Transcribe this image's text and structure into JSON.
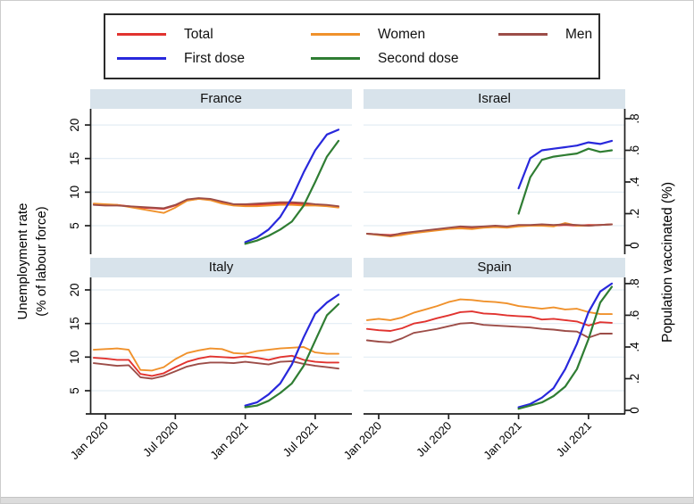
{
  "colors": {
    "grid": "#e3edf4",
    "axis": "#1f1f1f",
    "panel_header_bg": "#d8e3eb",
    "legend_border": "#2b2b2b",
    "background": "#ffffff"
  },
  "legend": {
    "items": [
      {
        "label": "Total",
        "color": "#e1332f"
      },
      {
        "label": "Women",
        "color": "#f0912b"
      },
      {
        "label": "Men",
        "color": "#9c4d48"
      },
      {
        "label": "First dose",
        "color": "#2828dc"
      },
      {
        "label": "Second dose",
        "color": "#2f7d33"
      }
    ]
  },
  "axis_labels": {
    "left_line1": "Unemployment rate",
    "left_line2": "(% of labour force)",
    "right": "Population vaccinated (%)"
  },
  "chart_data": {
    "type": "line",
    "layout": "2x2 small multiples; unemployment on left axis, vaccination share on right axis; legend top; light-blue panel title strips",
    "x": {
      "unit": "month",
      "labels": [
        "Dec 2019",
        "Jan 2020",
        "Feb 2020",
        "Mar 2020",
        "Apr 2020",
        "May 2020",
        "Jun 2020",
        "Jul 2020",
        "Aug 2020",
        "Sep 2020",
        "Oct 2020",
        "Nov 2020",
        "Dec 2020",
        "Jan 2021",
        "Feb 2021",
        "Mar 2021",
        "Apr 2021",
        "May 2021",
        "Jun 2021",
        "Jul 2021",
        "Aug 2021",
        "Sep 2021"
      ],
      "tick_labels": [
        "Jan 2020",
        "Jul 2020",
        "Jan 2021",
        "Jul 2021"
      ],
      "tick_indices": [
        1,
        7,
        13,
        19
      ]
    },
    "left_axis": {
      "label": "Unemployment rate (% of labour force)",
      "ticks": [
        5,
        10,
        15,
        20
      ],
      "tick_labels": [
        "5",
        "10",
        "15",
        "20"
      ],
      "range_hint": [
        0.75,
        22.4
      ]
    },
    "right_axis": {
      "label": "Population vaccinated (%)",
      "ticks": [
        0,
        0.2,
        0.4,
        0.6,
        0.8
      ],
      "tick_labels": [
        "0",
        ".2",
        ".4",
        ".6",
        ".8"
      ],
      "range_hint": [
        -0.06,
        0.86
      ]
    },
    "vaccination_start_index": 13,
    "panels": [
      {
        "title": "France",
        "series": [
          {
            "name": "Total",
            "axis": "left",
            "values": [
              8.2,
              8.1,
              8.1,
              7.9,
              7.7,
              7.6,
              7.5,
              8.0,
              8.8,
              9.0,
              8.9,
              8.4,
              8.1,
              8.0,
              8.1,
              8.2,
              8.3,
              8.3,
              8.2,
              8.1,
              8.0,
              7.8
            ]
          },
          {
            "name": "Women",
            "axis": "left",
            "values": [
              8.3,
              8.2,
              8.1,
              7.8,
              7.5,
              7.2,
              6.9,
              7.7,
              8.7,
              9.0,
              8.8,
              8.3,
              8.0,
              7.9,
              7.9,
              8.0,
              8.1,
              8.1,
              8.0,
              8.0,
              7.9,
              7.7
            ]
          },
          {
            "name": "Men",
            "axis": "left",
            "values": [
              8.1,
              8.0,
              8.0,
              7.9,
              7.8,
              7.7,
              7.6,
              8.1,
              8.9,
              9.1,
              9.0,
              8.6,
              8.2,
              8.2,
              8.3,
              8.4,
              8.5,
              8.5,
              8.4,
              8.2,
              8.1,
              7.9
            ]
          },
          {
            "name": "First dose",
            "axis": "right",
            "values": [
              0.02,
              0.05,
              0.1,
              0.18,
              0.3,
              0.46,
              0.6,
              0.7,
              0.73
            ]
          },
          {
            "name": "Second dose",
            "axis": "right",
            "values": [
              0.01,
              0.03,
              0.06,
              0.1,
              0.15,
              0.25,
              0.4,
              0.56,
              0.66
            ]
          }
        ]
      },
      {
        "title": "Israel",
        "series": [
          {
            "name": "Total",
            "axis": "left",
            "values": [
              3.8,
              3.7,
              3.6,
              3.8,
              4.0,
              4.2,
              4.4,
              4.6,
              4.8,
              4.7,
              4.8,
              4.9,
              4.8,
              5.0,
              5.0,
              5.1,
              5.0,
              5.1,
              5.0,
              5.1,
              5.1,
              5.2
            ]
          },
          {
            "name": "Women",
            "axis": "left",
            "values": [
              3.8,
              3.6,
              3.4,
              3.6,
              3.9,
              4.1,
              4.3,
              4.5,
              4.6,
              4.5,
              4.7,
              4.8,
              4.7,
              4.9,
              5.0,
              5.0,
              4.9,
              5.4,
              5.0,
              5.0,
              5.1,
              5.2
            ]
          },
          {
            "name": "Men",
            "axis": "left",
            "values": [
              3.8,
              3.7,
              3.5,
              3.9,
              4.1,
              4.3,
              4.5,
              4.7,
              4.9,
              4.8,
              4.9,
              5.0,
              4.9,
              5.1,
              5.1,
              5.2,
              5.1,
              5.2,
              5.1,
              5.0,
              5.1,
              5.2
            ]
          },
          {
            "name": "First dose",
            "axis": "right",
            "values": [
              0.36,
              0.55,
              0.6,
              0.61,
              0.62,
              0.63,
              0.65,
              0.64,
              0.66
            ]
          },
          {
            "name": "Second dose",
            "axis": "right",
            "values": [
              0.2,
              0.43,
              0.54,
              0.56,
              0.57,
              0.58,
              0.61,
              0.59,
              0.6
            ]
          }
        ]
      },
      {
        "title": "Italy",
        "series": [
          {
            "name": "Total",
            "axis": "left",
            "values": [
              9.9,
              9.8,
              9.6,
              9.6,
              7.5,
              7.2,
              7.6,
              8.5,
              9.3,
              9.8,
              10.1,
              10.0,
              9.9,
              10.1,
              9.9,
              9.6,
              10.0,
              10.2,
              9.6,
              9.3,
              9.2,
              9.2
            ]
          },
          {
            "name": "Women",
            "axis": "left",
            "values": [
              11.1,
              11.2,
              11.3,
              11.1,
              8.1,
              8.0,
              8.5,
              9.7,
              10.6,
              11.0,
              11.3,
              11.2,
              10.6,
              10.5,
              10.9,
              11.1,
              11.3,
              11.4,
              11.5,
              10.7,
              10.5,
              10.5
            ]
          },
          {
            "name": "Men",
            "axis": "left",
            "values": [
              9.1,
              8.9,
              8.7,
              8.8,
              7.0,
              6.8,
              7.2,
              7.9,
              8.6,
              9.0,
              9.2,
              9.2,
              9.1,
              9.3,
              9.1,
              8.9,
              9.3,
              9.4,
              9.0,
              8.7,
              8.5,
              8.3
            ]
          },
          {
            "name": "First dose",
            "axis": "right",
            "values": [
              0.03,
              0.05,
              0.1,
              0.17,
              0.29,
              0.46,
              0.61,
              0.68,
              0.73
            ]
          },
          {
            "name": "Second dose",
            "axis": "right",
            "values": [
              0.02,
              0.03,
              0.06,
              0.11,
              0.17,
              0.28,
              0.44,
              0.6,
              0.67
            ]
          }
        ]
      },
      {
        "title": "Spain",
        "series": [
          {
            "name": "Total",
            "axis": "left",
            "values": [
              14.2,
              14.0,
              13.9,
              14.3,
              15.0,
              15.3,
              15.8,
              16.2,
              16.7,
              16.8,
              16.5,
              16.4,
              16.2,
              16.1,
              16.0,
              15.6,
              15.7,
              15.5,
              15.3,
              14.7,
              15.2,
              15.1
            ]
          },
          {
            "name": "Women",
            "axis": "left",
            "values": [
              15.5,
              15.7,
              15.5,
              15.9,
              16.6,
              17.1,
              17.6,
              18.2,
              18.6,
              18.5,
              18.3,
              18.2,
              18.0,
              17.6,
              17.4,
              17.2,
              17.4,
              17.1,
              17.2,
              16.7,
              16.4,
              16.4
            ]
          },
          {
            "name": "Men",
            "axis": "left",
            "values": [
              12.5,
              12.3,
              12.2,
              12.8,
              13.6,
              13.9,
              14.2,
              14.6,
              15.0,
              15.1,
              14.8,
              14.7,
              14.6,
              14.5,
              14.4,
              14.2,
              14.1,
              13.9,
              13.8,
              12.9,
              13.5,
              13.5
            ]
          },
          {
            "name": "First dose",
            "axis": "right",
            "values": [
              0.02,
              0.04,
              0.08,
              0.14,
              0.26,
              0.42,
              0.62,
              0.75,
              0.8
            ]
          },
          {
            "name": "Second dose",
            "axis": "right",
            "values": [
              0.01,
              0.03,
              0.05,
              0.09,
              0.15,
              0.26,
              0.45,
              0.68,
              0.78
            ]
          }
        ]
      }
    ]
  }
}
